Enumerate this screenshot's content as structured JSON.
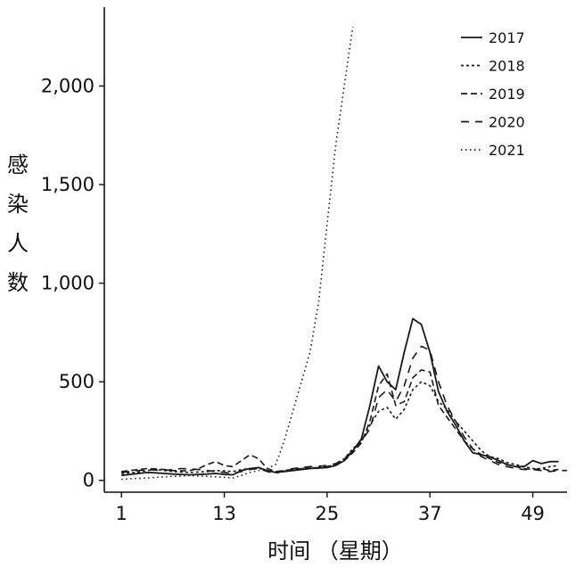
{
  "chart_data": {
    "type": "line",
    "title": "",
    "xlabel": "时间 （星期）",
    "ylabel": "感染人数",
    "xlim": [
      -1,
      53
    ],
    "ylim": [
      -60,
      2400
    ],
    "xticks": [
      1,
      13,
      25,
      37,
      49
    ],
    "xtick_labels": [
      "1",
      "13",
      "25",
      "37",
      "49"
    ],
    "yticks": [
      0,
      500,
      1000,
      1500,
      2000
    ],
    "ytick_labels": [
      "0",
      "500",
      "1,000",
      "1,500",
      "2,000"
    ],
    "grid": false,
    "legend_position": "top-right",
    "series": [
      {
        "name": "2017",
        "x": [
          1,
          2,
          3,
          4,
          5,
          6,
          7,
          8,
          9,
          10,
          11,
          12,
          13,
          14,
          15,
          16,
          17,
          18,
          19,
          20,
          21,
          22,
          23,
          24,
          25,
          26,
          27,
          28,
          29,
          30,
          31,
          32,
          33,
          34,
          35,
          36,
          37,
          38,
          39,
          40,
          41,
          42,
          43,
          44,
          45,
          46,
          47,
          48,
          49,
          50,
          51,
          52
        ],
        "y": [
          25,
          30,
          35,
          40,
          38,
          35,
          32,
          30,
          28,
          30,
          32,
          35,
          30,
          28,
          50,
          60,
          65,
          50,
          40,
          45,
          50,
          55,
          60,
          62,
          65,
          75,
          100,
          150,
          210,
          380,
          580,
          500,
          460,
          650,
          820,
          790,
          650,
          450,
          350,
          280,
          200,
          140,
          130,
          120,
          100,
          80,
          70,
          70,
          100,
          85,
          95,
          95
        ],
        "dash": "solid"
      },
      {
        "name": "2018",
        "x": [
          1,
          2,
          3,
          4,
          5,
          6,
          7,
          8,
          9,
          10,
          11,
          12,
          13,
          14,
          15,
          16,
          17,
          18,
          19,
          20,
          21,
          22,
          23,
          24,
          25,
          26,
          27,
          28,
          29,
          30,
          31,
          32,
          33,
          34,
          35,
          36,
          37,
          38,
          39,
          40,
          41,
          42,
          43,
          44,
          45,
          46,
          47,
          48,
          49,
          50,
          51,
          52
        ],
        "y": [
          35,
          38,
          42,
          50,
          55,
          50,
          45,
          42,
          40,
          42,
          45,
          50,
          48,
          45,
          55,
          60,
          62,
          50,
          42,
          48,
          55,
          60,
          62,
          65,
          70,
          80,
          110,
          160,
          200,
          280,
          350,
          370,
          310,
          360,
          460,
          500,
          480,
          400,
          360,
          300,
          250,
          200,
          150,
          120,
          110,
          90,
          80,
          70,
          60,
          60,
          70,
          75
        ],
        "dash": "3,3"
      },
      {
        "name": "2019",
        "x": [
          1,
          2,
          3,
          4,
          5,
          6,
          7,
          8,
          9,
          10,
          11,
          12,
          13,
          14,
          15,
          16,
          17,
          18,
          19,
          20,
          21,
          22,
          23,
          24,
          25,
          26,
          27,
          28,
          29,
          30,
          31,
          32,
          33,
          34,
          35,
          36,
          37,
          38,
          39,
          40,
          41,
          42,
          43,
          44,
          45,
          46,
          47,
          48,
          49,
          50,
          51,
          52
        ],
        "y": [
          45,
          50,
          55,
          60,
          58,
          55,
          50,
          48,
          50,
          60,
          80,
          95,
          75,
          70,
          100,
          130,
          110,
          60,
          45,
          50,
          55,
          60,
          62,
          65,
          70,
          80,
          100,
          140,
          190,
          300,
          480,
          540,
          380,
          400,
          520,
          560,
          550,
          380,
          320,
          260,
          200,
          160,
          130,
          110,
          90,
          80,
          70,
          60,
          55,
          60,
          50,
          55
        ],
        "dash": "7,4"
      },
      {
        "name": "2020",
        "x": [
          1,
          2,
          3,
          4,
          5,
          6,
          7,
          8,
          9,
          10,
          11,
          12,
          13,
          14,
          15,
          16,
          17,
          18,
          19,
          20,
          21,
          22,
          23,
          24,
          25,
          26,
          27,
          28,
          29,
          30,
          31,
          32,
          33,
          34,
          35,
          36,
          37,
          38,
          39,
          40,
          41,
          42,
          43,
          44,
          45,
          46,
          47,
          48,
          49,
          50,
          51,
          52,
          53
        ],
        "y": [
          40,
          45,
          50,
          55,
          52,
          50,
          55,
          60,
          58,
          55,
          50,
          45,
          40,
          35,
          45,
          55,
          60,
          45,
          35,
          50,
          60,
          65,
          70,
          72,
          75,
          85,
          110,
          150,
          200,
          260,
          420,
          460,
          400,
          480,
          620,
          680,
          660,
          500,
          380,
          300,
          220,
          160,
          120,
          100,
          80,
          70,
          60,
          55,
          55,
          50,
          45,
          50,
          50
        ],
        "dash": "9,7"
      },
      {
        "name": "2021",
        "x": [
          1,
          2,
          3,
          4,
          5,
          6,
          7,
          8,
          9,
          10,
          11,
          12,
          13,
          14,
          15,
          16,
          17,
          18,
          19,
          20,
          21,
          22,
          23,
          24,
          25,
          26,
          27,
          28
        ],
        "y": [
          5,
          8,
          10,
          12,
          15,
          18,
          20,
          22,
          25,
          22,
          20,
          18,
          15,
          12,
          25,
          40,
          50,
          60,
          80,
          200,
          350,
          500,
          650,
          900,
          1300,
          1700,
          2000,
          2300
        ],
        "dash": "1.5,3.5"
      }
    ]
  }
}
